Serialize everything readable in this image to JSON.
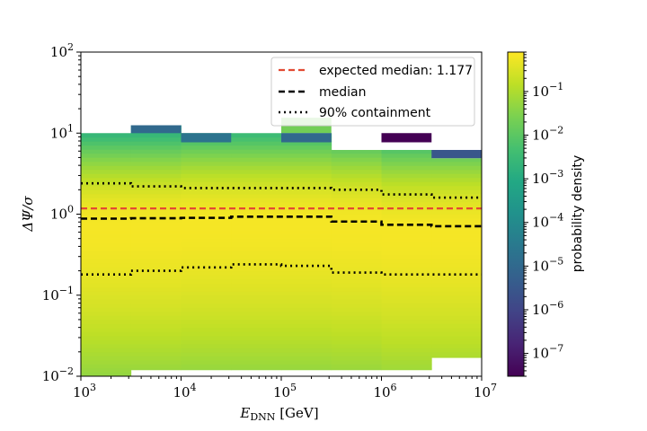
{
  "chart_data": {
    "type": "heatmap",
    "title": "",
    "xlabel": {
      "main": "E",
      "sub": "DNN",
      "unit": "[GeV]"
    },
    "ylabel": {
      "main": "ΔΨ/σ"
    },
    "x_scale": "log",
    "y_scale": "log",
    "xlim": [
      1000,
      10000000
    ],
    "ylim": [
      0.01,
      100
    ],
    "x_ticks": [
      {
        "value": 1000,
        "base": "10",
        "exp": "3"
      },
      {
        "value": 10000,
        "base": "10",
        "exp": "4"
      },
      {
        "value": 100000,
        "base": "10",
        "exp": "5"
      },
      {
        "value": 1000000,
        "base": "10",
        "exp": "6"
      },
      {
        "value": 10000000,
        "base": "10",
        "exp": "7"
      }
    ],
    "y_ticks": [
      {
        "value": 0.01,
        "base": "10",
        "exp": "−2"
      },
      {
        "value": 0.1,
        "base": "10",
        "exp": "−1"
      },
      {
        "value": 1,
        "base": "10",
        "exp": "0"
      },
      {
        "value": 10,
        "base": "10",
        "exp": "1"
      },
      {
        "value": 100,
        "base": "10",
        "exp": "2"
      }
    ],
    "x_bin_edges": [
      1000,
      3162,
      10000,
      31623,
      100000,
      316228,
      1000000,
      3162278,
      10000000
    ],
    "colorbar": {
      "label": "probability density",
      "scale": "log",
      "range": [
        3e-08,
        0.8
      ],
      "colormap": "viridis",
      "ticks": [
        {
          "value": 1e-07,
          "base": "10",
          "exp": "−7"
        },
        {
          "value": 1e-06,
          "base": "10",
          "exp": "−6"
        },
        {
          "value": 1e-05,
          "base": "10",
          "exp": "−5"
        },
        {
          "value": 0.0001,
          "base": "10",
          "exp": "−4"
        },
        {
          "value": 0.001,
          "base": "10",
          "exp": "−3"
        },
        {
          "value": 0.01,
          "base": "10",
          "exp": "−2"
        },
        {
          "value": 0.1,
          "base": "10",
          "exp": "−1"
        }
      ]
    },
    "columns": [
      {
        "x_range": [
          1000,
          3162
        ],
        "y_min": 0.01,
        "y_max": 10,
        "peak_y": 0.7
      },
      {
        "x_range": [
          3162,
          10000
        ],
        "y_min": 0.012,
        "y_max": 12.5,
        "peak_y": 0.7
      },
      {
        "x_range": [
          10000,
          31623
        ],
        "y_min": 0.012,
        "y_max": 10,
        "peak_y": 0.75
      },
      {
        "x_range": [
          31623,
          100000
        ],
        "y_min": 0.012,
        "y_max": 10,
        "peak_y": 0.75
      },
      {
        "x_range": [
          100000,
          316228
        ],
        "y_min": 0.012,
        "y_max": 10,
        "peak_y": 0.75
      },
      {
        "x_range": [
          316228,
          1000000
        ],
        "y_min": 0.012,
        "y_max": 6.2,
        "peak_y": 0.7
      },
      {
        "x_range": [
          1000000,
          3162278
        ],
        "y_min": 0.012,
        "y_max": 6.2,
        "peak_y": 0.6
      },
      {
        "x_range": [
          3162278,
          10000000
        ],
        "y_min": 0.017,
        "y_max": 4.9,
        "peak_y": 0.6
      }
    ],
    "isolated_cells": [
      {
        "x_range": [
          1000000,
          3162278
        ],
        "y_range": [
          7.7,
          10
        ],
        "density": 3e-08
      },
      {
        "x_range": [
          3162278,
          10000000
        ],
        "y_range": [
          4.9,
          6.2
        ],
        "density": 3e-06
      },
      {
        "x_range": [
          100000,
          316228
        ],
        "y_range": [
          10,
          15.5
        ],
        "density": 0.02
      },
      {
        "x_range": [
          100000,
          316228
        ],
        "y_range": [
          7.7,
          10
        ],
        "density": 1e-05
      },
      {
        "x_range": [
          3162,
          10000
        ],
        "y_range": [
          10,
          12.5
        ],
        "density": 1e-05
      },
      {
        "x_range": [
          10000,
          31623
        ],
        "y_range": [
          7.7,
          10
        ],
        "density": 2e-05
      }
    ],
    "series": [
      {
        "name": "expected median: 1.177",
        "style": "dashed",
        "color": "#e24a33",
        "values": [
          1.177,
          1.177,
          1.177,
          1.177,
          1.177,
          1.177,
          1.177,
          1.177
        ]
      },
      {
        "name": "median",
        "style": "dashed",
        "color": "#000000",
        "values": [
          0.88,
          0.89,
          0.9,
          0.93,
          0.93,
          0.81,
          0.74,
          0.71
        ]
      },
      {
        "name": "90% containment",
        "style": "dotted",
        "color": "#000000",
        "values_upper": [
          2.4,
          2.2,
          2.1,
          2.1,
          2.1,
          2.0,
          1.75,
          1.6
        ],
        "values_lower": [
          0.18,
          0.2,
          0.22,
          0.24,
          0.23,
          0.19,
          0.18,
          0.18
        ]
      }
    ],
    "legend": {
      "position": "top-right"
    },
    "grid": false
  }
}
